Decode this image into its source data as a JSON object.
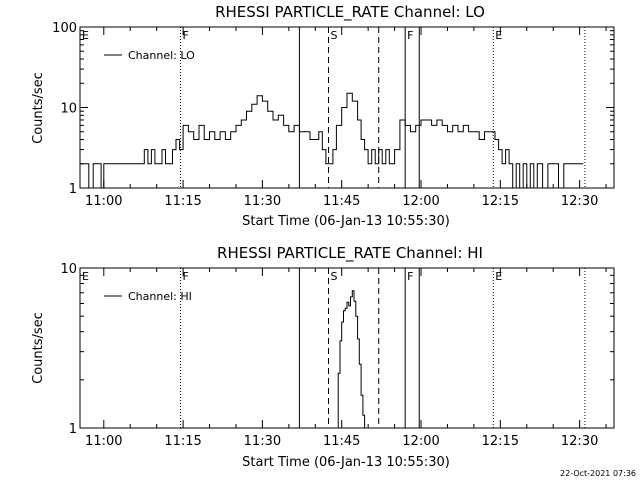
{
  "figure": {
    "timestamp": "22-Oct-2021 07:36"
  },
  "chart_data": [
    {
      "type": "line",
      "title": "RHESSI PARTICLE_RATE Channel: LO",
      "xlabel": "Start Time (06-Jan-13 10:55:30)",
      "ylabel": "Counts/sec",
      "y_scale": "log",
      "ylim": [
        1,
        100
      ],
      "xlim": [
        "10:55:30",
        "12:36:30"
      ],
      "x_ticks": [
        "11:00",
        "11:15",
        "11:30",
        "11:45",
        "12:00",
        "12:15",
        "12:30"
      ],
      "y_ticks": [
        "1",
        "10",
        "100"
      ],
      "legend": {
        "label": "Channel: LO",
        "placement": "top-left"
      },
      "markers": [
        {
          "label": "E",
          "time": "10:55:30",
          "style": "dotted"
        },
        {
          "label": "F",
          "time": "11:14:30",
          "style": "dotted"
        },
        {
          "label": "",
          "time": "11:37:00",
          "style": "solid"
        },
        {
          "label": "S",
          "time": "11:42:30",
          "style": "dashed"
        },
        {
          "label": "",
          "time": "11:52:00",
          "style": "dashed"
        },
        {
          "label": "F",
          "time": "11:57:00",
          "style": "solid"
        },
        {
          "label": "",
          "time": "11:59:40",
          "style": "solid"
        },
        {
          "label": "E",
          "time": "12:13:40",
          "style": "dotted"
        },
        {
          "label": "",
          "time": "12:31:00",
          "style": "dotted"
        }
      ],
      "series": [
        {
          "x": [
            "10:55:30",
            "10:56:20",
            "10:57:10",
            "10:58:00",
            "10:58:40",
            "10:59:30",
            "11:00:00",
            "11:01:00",
            "11:02:00",
            "11:03:00",
            "11:04:00",
            "11:05:00",
            "11:06:00",
            "11:07:00",
            "11:07:40",
            "11:08:20",
            "11:09:00",
            "11:09:40",
            "11:10:20",
            "11:11:00",
            "11:11:40",
            "11:12:20",
            "11:13:00",
            "11:13:40",
            "11:14:20",
            "11:15:00",
            "11:16:00",
            "11:17:00",
            "11:18:00",
            "11:19:00",
            "11:20:00",
            "11:21:00",
            "11:22:00",
            "11:23:00",
            "11:24:00",
            "11:25:00",
            "11:26:00",
            "11:27:00",
            "11:28:00",
            "11:29:00",
            "11:30:00",
            "11:31:00",
            "11:32:00",
            "11:33:00",
            "11:34:00",
            "11:35:00",
            "11:36:00",
            "11:37:00",
            "11:38:00",
            "11:39:00",
            "11:40:00",
            "11:40:40",
            "11:41:20",
            "11:42:00",
            "11:42:40",
            "11:43:20",
            "11:44:00",
            "11:45:00",
            "11:46:00",
            "11:47:00",
            "11:48:00",
            "11:48:40",
            "11:49:20",
            "11:50:00",
            "11:50:40",
            "11:51:20",
            "11:52:00",
            "11:52:40",
            "11:53:20",
            "11:54:00",
            "11:55:00",
            "11:56:00",
            "11:57:00",
            "11:58:00",
            "11:59:00",
            "12:00:00",
            "12:01:00",
            "12:02:00",
            "12:03:00",
            "12:04:00",
            "12:05:00",
            "12:06:00",
            "12:07:00",
            "12:08:00",
            "12:09:00",
            "12:10:00",
            "12:11:00",
            "12:12:00",
            "12:13:00",
            "12:14:00",
            "12:14:40",
            "12:15:20",
            "12:16:00",
            "12:16:40",
            "12:17:20",
            "12:18:00",
            "12:18:40",
            "12:19:20",
            "12:20:00",
            "12:20:40",
            "12:21:20",
            "12:22:00",
            "12:23:00",
            "12:24:00",
            "12:25:00",
            "12:26:00",
            "12:27:00",
            "12:28:00",
            "12:29:00",
            "12:30:00",
            "12:30:40"
          ],
          "y": [
            2,
            2,
            1,
            2,
            2,
            1,
            2,
            2,
            2,
            2,
            2,
            2,
            2,
            2,
            3,
            2,
            3,
            2,
            2,
            3,
            2,
            2,
            3,
            4,
            3,
            6,
            5,
            4,
            6,
            4,
            5,
            4,
            5,
            4,
            5,
            6,
            7,
            9,
            11,
            14,
            12,
            9,
            7,
            8,
            6,
            5,
            6,
            5,
            5,
            4,
            4,
            5,
            3,
            2,
            2,
            3,
            6,
            10,
            15,
            12,
            7,
            4,
            3,
            2,
            3,
            2,
            3,
            2,
            3,
            2,
            3,
            7,
            6,
            5,
            6,
            7,
            7,
            6,
            7,
            6,
            5,
            6,
            5,
            6,
            5,
            5,
            4,
            5,
            5,
            4,
            3,
            2,
            3,
            2,
            1,
            2,
            1,
            2,
            1,
            2,
            1,
            2,
            1,
            2,
            2,
            1,
            2,
            2,
            2,
            2,
            2
          ]
        }
      ]
    },
    {
      "type": "line",
      "title": "RHESSI PARTICLE_RATE Channel: HI",
      "xlabel": "Start Time (06-Jan-13 10:55:30)",
      "ylabel": "Counts/sec",
      "y_scale": "log",
      "ylim": [
        1,
        10
      ],
      "xlim": [
        "10:55:30",
        "12:36:30"
      ],
      "x_ticks": [
        "11:00",
        "11:15",
        "11:30",
        "11:45",
        "12:00",
        "12:15",
        "12:30"
      ],
      "y_ticks": [
        "1",
        "10"
      ],
      "legend": {
        "label": "Channel: HI",
        "placement": "top-left"
      },
      "markers": [
        {
          "label": "E",
          "time": "10:55:30",
          "style": "dotted"
        },
        {
          "label": "F",
          "time": "11:14:30",
          "style": "dotted"
        },
        {
          "label": "",
          "time": "11:37:00",
          "style": "solid"
        },
        {
          "label": "S",
          "time": "11:42:30",
          "style": "dashed"
        },
        {
          "label": "",
          "time": "11:52:00",
          "style": "dashed"
        },
        {
          "label": "F",
          "time": "11:57:00",
          "style": "solid"
        },
        {
          "label": "",
          "time": "11:59:40",
          "style": "solid"
        },
        {
          "label": "E",
          "time": "12:13:40",
          "style": "dotted"
        },
        {
          "label": "",
          "time": "12:31:00",
          "style": "dotted"
        }
      ],
      "series": [
        {
          "x": [
            "11:44:00",
            "11:44:20",
            "11:44:40",
            "11:45:00",
            "11:45:20",
            "11:45:40",
            "11:46:00",
            "11:46:20",
            "11:46:40",
            "11:47:00",
            "11:47:20",
            "11:47:40",
            "11:48:00",
            "11:48:20",
            "11:48:40",
            "11:49:00",
            "11:49:20"
          ],
          "y": [
            1,
            2.2,
            3.5,
            4.6,
            5.4,
            5.6,
            6.1,
            5.8,
            6.6,
            7.2,
            6.2,
            5.0,
            3.6,
            2.5,
            1.6,
            1.2,
            1
          ]
        }
      ]
    }
  ]
}
